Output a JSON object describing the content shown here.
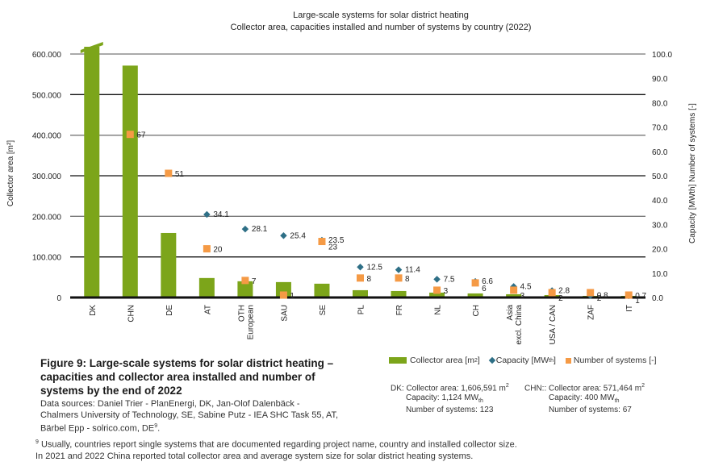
{
  "chart_data": {
    "type": "bar",
    "title": "Large-scale systems for solar district heating",
    "subtitle": "Collector area, capacities installed and number of systems by country (2022)",
    "categories": [
      "DK",
      "CHN",
      "DE",
      "AT",
      "OTH European",
      "SAU",
      "SE",
      "PL",
      "FR",
      "NL",
      "CH",
      "Asia excl. China",
      "USA / CAN",
      "ZAF",
      "IT"
    ],
    "category_lines": [
      [
        "DK"
      ],
      [
        "CHN"
      ],
      [
        "DE"
      ],
      [
        "AT"
      ],
      [
        "OTH",
        "European"
      ],
      [
        "SAU"
      ],
      [
        "SE"
      ],
      [
        "PL"
      ],
      [
        "FR"
      ],
      [
        "NL"
      ],
      [
        "CH"
      ],
      [
        "Asia",
        "excl. China"
      ],
      [
        "USA / CAN"
      ],
      [
        "ZAF"
      ],
      [
        "IT"
      ]
    ],
    "series": [
      {
        "name": "Collector area [m²]",
        "axis": "left",
        "kind": "bar",
        "color": "#7ca51a",
        "values": [
          1606591,
          571464,
          159000,
          48000,
          40000,
          38000,
          34000,
          18000,
          16000,
          12000,
          10000,
          8000,
          6000,
          4000,
          4000
        ]
      },
      {
        "name": "Capacity [MWth]",
        "axis": "right",
        "kind": "marker-diamond",
        "color": "#2e6f86",
        "values": [
          null,
          null,
          null,
          34.1,
          28.1,
          25.4,
          23.5,
          12.5,
          11.4,
          7.5,
          6.6,
          4.5,
          2.8,
          0.8,
          0.7
        ]
      },
      {
        "name": "Number of systems [-]",
        "axis": "right",
        "kind": "marker-square",
        "color": "#f59a45",
        "values": [
          null,
          67,
          51,
          20,
          7,
          1,
          23,
          8,
          8,
          3,
          6,
          3,
          2,
          2,
          1
        ]
      }
    ],
    "cap_labels": [
      "",
      "",
      "",
      "34.1",
      "28.1",
      "25.4",
      "23.5",
      "12.5",
      "11.4",
      "7.5",
      "6.6",
      "4.5",
      "2.8",
      "0.8",
      "0.7"
    ],
    "num_labels": [
      "",
      "67",
      "51",
      "20",
      "7",
      "1",
      "23",
      "8",
      "8",
      "3",
      "6",
      "3",
      "2",
      "2",
      "1"
    ],
    "left_axis": {
      "label": "Collector area [m²]",
      "ylim": [
        0,
        600000
      ],
      "ticks": [
        "0",
        "100.000",
        "200.000",
        "300.000",
        "400.000",
        "500.000",
        "600.000"
      ]
    },
    "right_axis": {
      "label": "Capacity [MWth]  Number of systems [-]",
      "ylim": [
        0,
        100
      ],
      "ticks": [
        "0.0",
        "10.0",
        "20.0",
        "30.0",
        "40.0",
        "50.0",
        "60.0",
        "70.0",
        "80.0",
        "90.0",
        "100.0"
      ]
    },
    "grid": true,
    "truncated_bars": [
      "DK"
    ],
    "legend_placement": "bottom-right"
  },
  "legend": {
    "collector": "Collector area [m",
    "collector_sup": "2",
    "collector_end": "]",
    "capacity": "Capacity [MW",
    "capacity_sub": "th",
    "capacity_end": "]",
    "systems": "Number of systems [-]"
  },
  "notes": {
    "dk_head": "DK: Collector area: 1,606,591 m",
    "dk_cap": "Capacity: 1,124 MW",
    "dk_num": "Number of systems: 123",
    "chn_head": "CHN:: Collector area: 571,464 m",
    "chn_cap": "Capacity: 400 MW",
    "chn_num": "Number of systems: 67",
    "sup2": "2",
    "sub_th": "th"
  },
  "caption": {
    "title": "Figure 9: Large-scale systems for solar district heating – capacities and collector area installed and number of systems by the end of 2022",
    "sources": "Data sources: Daniel Trier - PlanEnergi, DK, Jan-Olof Dalenbäck - Chalmers University of Technology, SE, Sabine Putz - IEA SHC Task 55, AT, Bärbel Epp - solrico.com, DE",
    "sources_sup": "9",
    "sources_end": "."
  },
  "footnote": {
    "mark": "9",
    "line1": " Usually, countries report single systems that are documented regarding project name, country and installed collector size.",
    "line2": "In 2021 and 2022 China reported total collector area and average system size for solar district heating systems."
  }
}
